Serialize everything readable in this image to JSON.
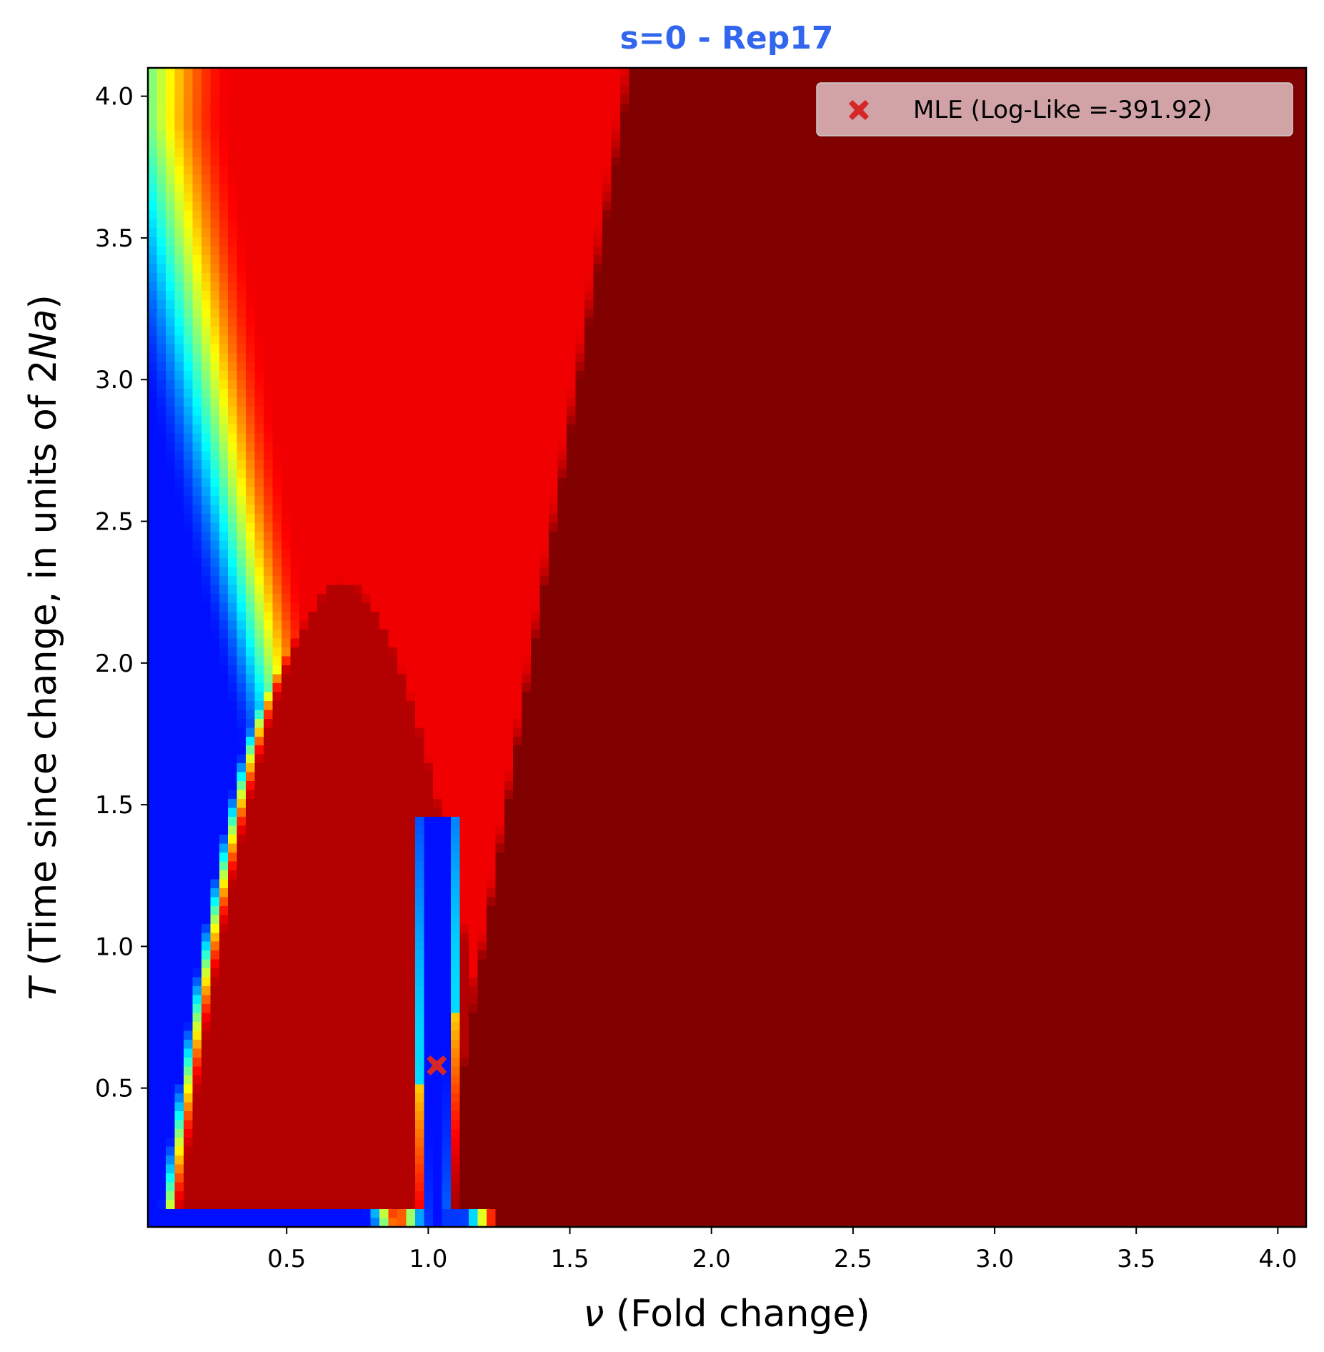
{
  "chart_data": {
    "type": "heatmap",
    "title": "s=0 - Rep17",
    "title_color": "#3366ee",
    "xlabel_symbol": "ν",
    "xlabel_text": " (Fold change)",
    "ylabel_symbol": "T",
    "ylabel_pre": " (Time since change, in units of 2",
    "ylabel_italic": "Na",
    "ylabel_post": ")",
    "xlim": [
      0.01,
      4.1
    ],
    "ylim": [
      0.01,
      4.1
    ],
    "xticks": [
      {
        "value": 0.5,
        "label": "0.5"
      },
      {
        "value": 1.0,
        "label": "1.0"
      },
      {
        "value": 1.5,
        "label": "1.5"
      },
      {
        "value": 2.0,
        "label": "2.0"
      },
      {
        "value": 2.5,
        "label": "2.5"
      },
      {
        "value": 3.0,
        "label": "3.0"
      },
      {
        "value": 3.5,
        "label": "3.5"
      },
      {
        "value": 4.0,
        "label": "4.0"
      }
    ],
    "yticks": [
      {
        "value": 0.5,
        "label": "0.5"
      },
      {
        "value": 1.0,
        "label": "1.0"
      },
      {
        "value": 1.5,
        "label": "1.5"
      },
      {
        "value": 2.0,
        "label": "2.0"
      },
      {
        "value": 2.5,
        "label": "2.5"
      },
      {
        "value": 3.0,
        "label": "3.0"
      },
      {
        "value": 3.5,
        "label": "3.5"
      },
      {
        "value": 4.0,
        "label": "4.0"
      }
    ],
    "colormap": "jet",
    "grid": false,
    "mle": {
      "nu": 1.03,
      "T": 0.58,
      "marker": "X",
      "color": "#d62728",
      "legend_label": "MLE (Log-Like =-391.92)"
    },
    "legend_placement": "top-right",
    "legend_bg": "#e5cccf"
  }
}
